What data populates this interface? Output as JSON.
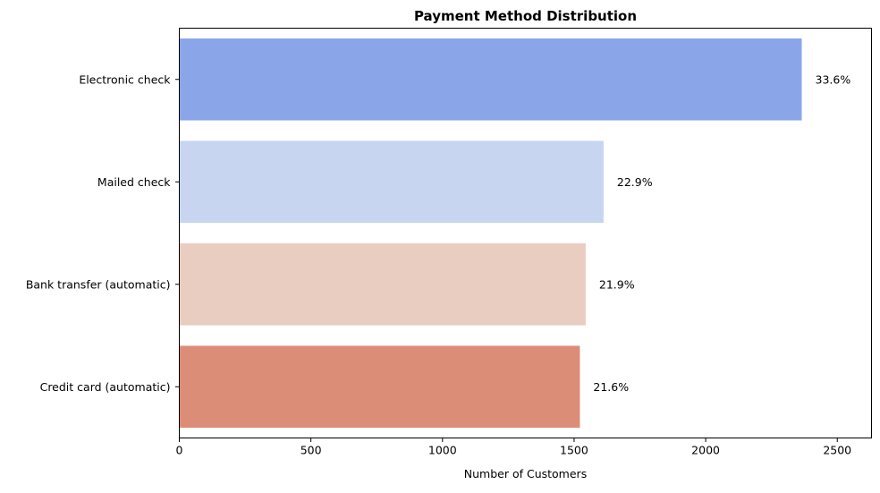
{
  "chart_data": {
    "type": "bar",
    "orientation": "horizontal",
    "title": "Payment Method Distribution",
    "xlabel": "Number of Customers",
    "ylabel": "",
    "categories": [
      "Electronic check",
      "Mailed check",
      "Bank transfer (automatic)",
      "Credit card (automatic)"
    ],
    "values": [
      2365,
      1612,
      1544,
      1522
    ],
    "data_labels": [
      "33.6%",
      "22.9%",
      "21.9%",
      "21.6%"
    ],
    "colors": [
      "#8aa6e9",
      "#c7d5f0",
      "#e9cdc0",
      "#dc8d77"
    ],
    "xlim": [
      0,
      2630
    ],
    "xticks": [
      0,
      500,
      1000,
      1500,
      2000,
      2500
    ],
    "xtick_labels": [
      "0",
      "500",
      "1000",
      "1500",
      "2000",
      "2500"
    ],
    "grid": false,
    "legend": "none"
  }
}
